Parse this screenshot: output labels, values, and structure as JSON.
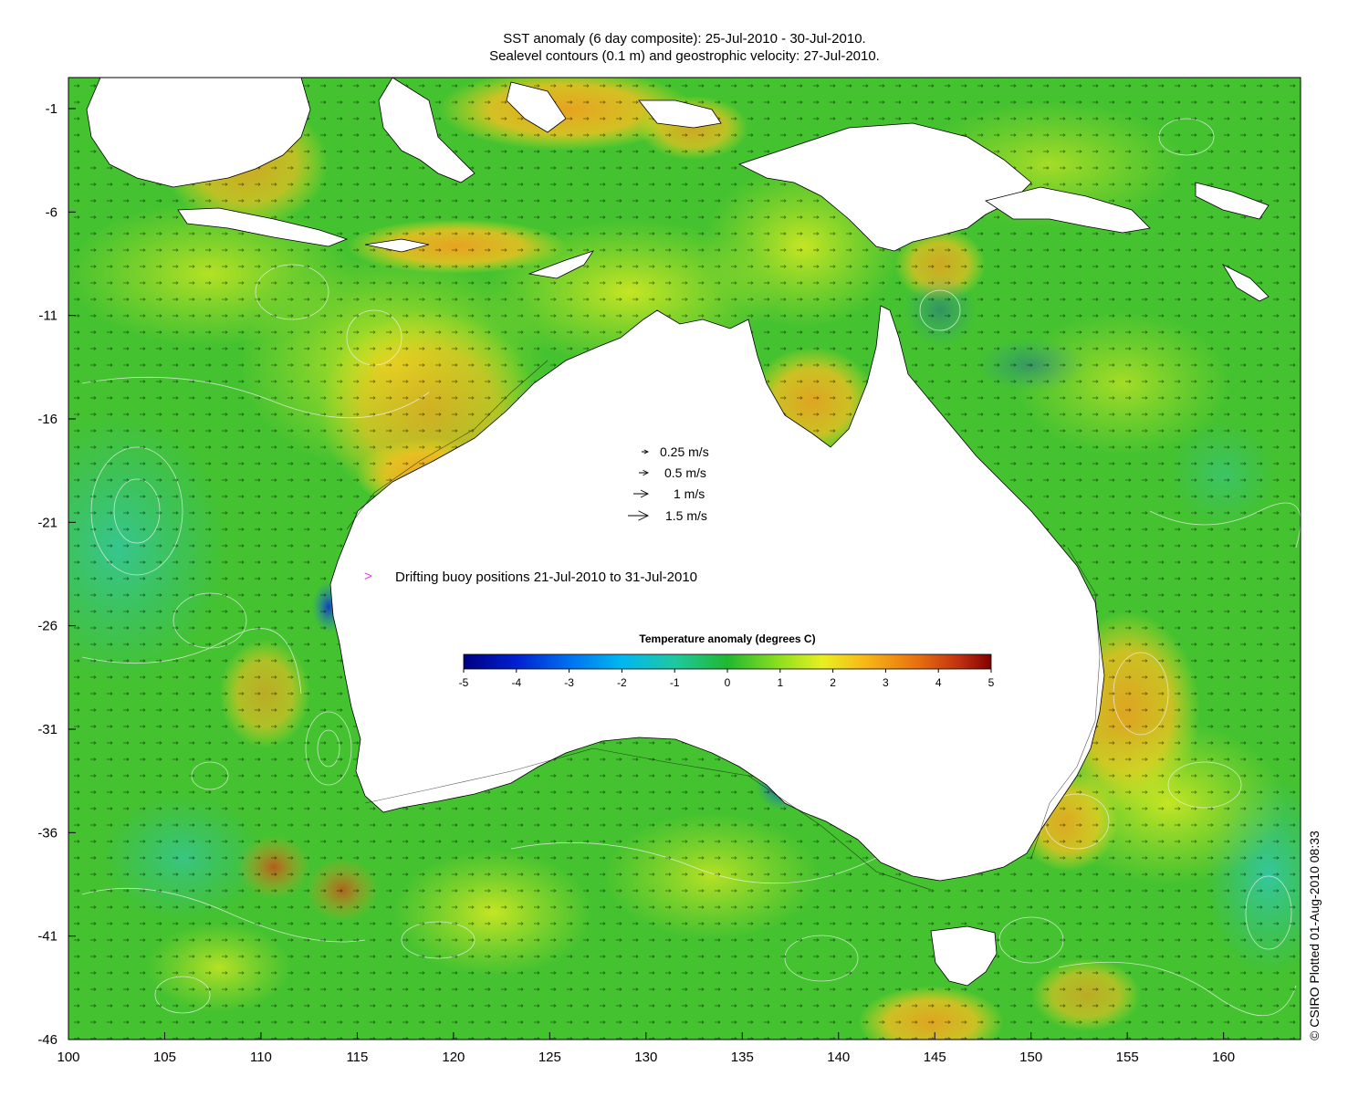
{
  "title_line1": "SST anomaly (6 day composite): 25-Jul-2010 - 30-Jul-2010.",
  "title_line2": "Sealevel contours (0.1 m) and geostrophic velocity: 27-Jul-2010.",
  "velocity_legend": [
    {
      "label": "0.25 m/s",
      "speed": 0.25
    },
    {
      "label": "0.5 m/s",
      "speed": 0.5
    },
    {
      "label": "1 m/s",
      "speed": 1
    },
    {
      "label": "1.5 m/s",
      "speed": 1.5
    }
  ],
  "buoy_legend": {
    "symbol": ">",
    "label": "Drifting buoy positions 21-Jul-2010 to 31-Jul-2010",
    "color": "#e040e0"
  },
  "colorbar": {
    "title": "Temperature anomaly (degrees C)",
    "min": -5,
    "max": 5,
    "ticks": [
      "-5",
      "-4",
      "-3",
      "-2",
      "-1",
      "0",
      "1",
      "2",
      "3",
      "4",
      "5"
    ]
  },
  "credit": "© CSIRO Plotted 01-Aug-2010 08:33",
  "chart_data": {
    "type": "heatmap",
    "x_ticks": [
      "100",
      "105",
      "110",
      "115",
      "120",
      "125",
      "130",
      "135",
      "140",
      "145",
      "150",
      "155",
      "160"
    ],
    "y_ticks": [
      "-1",
      "-6",
      "-11",
      "-16",
      "-21",
      "-26",
      "-31",
      "-36",
      "-41",
      "-46"
    ],
    "xlim": [
      100,
      164
    ],
    "ylim": [
      -46,
      0.5
    ]
  },
  "colors": {
    "ocean_base": "#44c230",
    "land": "#ffffff"
  }
}
